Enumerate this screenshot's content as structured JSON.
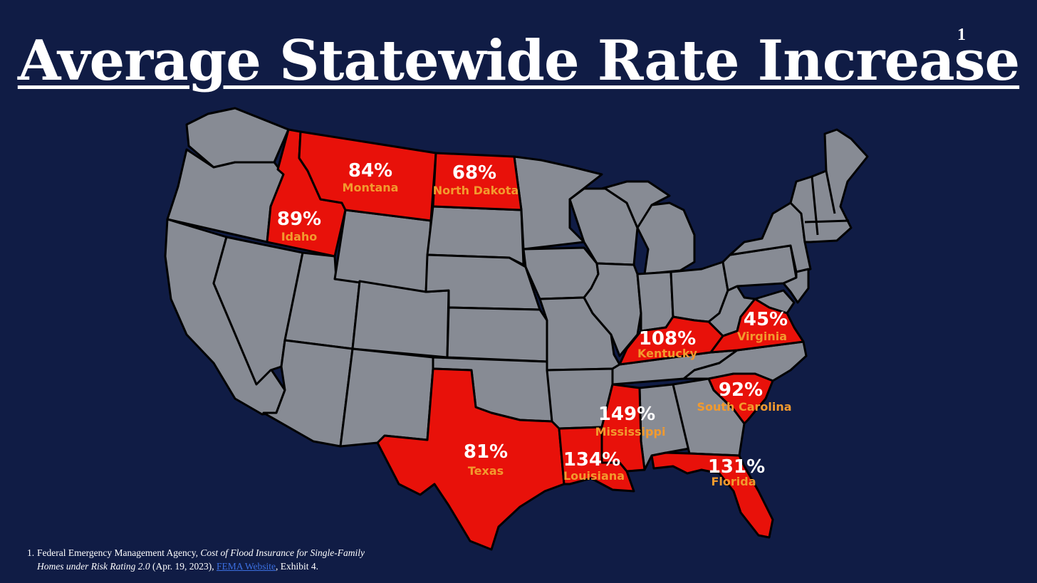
{
  "title": "Average Statewide Rate Increase",
  "title_footnote_marker": "1",
  "colors": {
    "background": "#101c45",
    "state_default": "#878b94",
    "state_highlight": "#e8110a",
    "percent_text": "#ffffff",
    "state_name_text": "#f29a2e"
  },
  "highlighted_states": [
    {
      "state": "Idaho",
      "rate_increase": "89%"
    },
    {
      "state": "Montana",
      "rate_increase": "84%"
    },
    {
      "state": "North Dakota",
      "rate_increase": "68%"
    },
    {
      "state": "Kentucky",
      "rate_increase": "108%"
    },
    {
      "state": "Virginia",
      "rate_increase": "45%"
    },
    {
      "state": "South Carolina",
      "rate_increase": "92%"
    },
    {
      "state": "Mississippi",
      "rate_increase": "149%"
    },
    {
      "state": "Texas",
      "rate_increase": "81%"
    },
    {
      "state": "Louisiana",
      "rate_increase": "134%"
    },
    {
      "state": "Florida",
      "rate_increase": "131%"
    }
  ],
  "footnote": {
    "number": "1.",
    "text_before": "Federal Emergency Management Agency, ",
    "italic_title_line1": "Cost of Flood Insurance for Single-Family",
    "italic_title_line2": "Homes under Risk Rating 2.0",
    "date": " (Apr. 19, 2023), ",
    "link_text": "FEMA Website",
    "text_after": ", Exhibit 4."
  }
}
